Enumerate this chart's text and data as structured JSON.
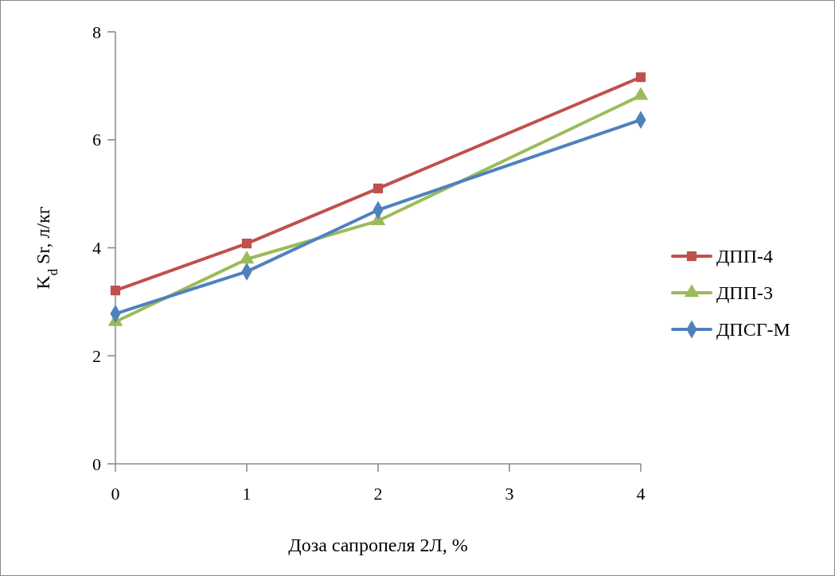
{
  "chart_data": {
    "type": "line",
    "xlabel": "Доза сапропеля 2Л, %",
    "ylabel": "K$_{d}$ Sr, л/кг",
    "x": [
      0,
      1,
      2,
      4
    ],
    "xlim": [
      0,
      4
    ],
    "xticks": [
      0,
      1,
      2,
      3,
      4
    ],
    "ylim": [
      0,
      8
    ],
    "yticks": [
      0,
      2,
      4,
      6,
      8
    ],
    "series": [
      {
        "name": "ДПП-4",
        "color": "#c0504d",
        "marker": "square",
        "values": [
          3.21,
          4.08,
          5.1,
          7.16
        ]
      },
      {
        "name": "ДПП-3",
        "color": "#9bbb59",
        "marker": "triangle",
        "values": [
          2.63,
          3.79,
          4.5,
          6.82
        ]
      },
      {
        "name": "ДПСГ-М",
        "color": "#4f81bd",
        "marker": "diamond",
        "values": [
          2.78,
          3.56,
          4.7,
          6.37
        ]
      }
    ],
    "legend": "right",
    "grid": false,
    "line_style": "solid"
  }
}
